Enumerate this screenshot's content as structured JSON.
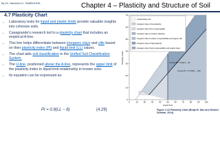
{
  "header": {
    "author": "By Dr. Hamidou H. TAMBOURA",
    "title": "Chapter 4 – Plasticity and Structure of Soil"
  },
  "section": {
    "heading": "4.7 Plasticity Chart",
    "bullets": [
      [
        "Laboratory tests for ",
        {
          "text": "liquid and plastic limits",
          "highlight": true
        },
        " provide valuable insights into cohesive soils."
      ],
      [
        "Casagrande's research led to a ",
        {
          "text": "plasticity chart",
          "highlight": true
        },
        " that includes an empirical A-line."
      ],
      [
        "This line helps differentiate between ",
        {
          "text": "inorganic clays",
          "highlight": true
        },
        " and ",
        {
          "text": "silts",
          "highlight": true
        },
        " based on their ",
        {
          "text": "plasticity index (PI)",
          "highlight": true
        },
        " and ",
        {
          "text": "liquid limit (LL)",
          "highlight": true
        },
        " values."
      ],
      [
        "The chart aids ",
        {
          "text": "soil classification",
          "highlight": true
        },
        " in the ",
        {
          "text": "Unified Soil Classification System.",
          "highlight": true
        }
      ],
      [
        "The ",
        {
          "text": "U-line",
          "highlight": true
        },
        ", positioned ",
        {
          "text": "above the A-line",
          "highlight": true
        },
        ", represents the ",
        {
          "text": "upper limit",
          "highlight": true
        },
        " of the plasticity index to liquid limit relationship in known soils."
      ],
      [
        "Its equation can be expressed as:"
      ]
    ],
    "equation": "PI = 0.9(LL − 8)",
    "equation_number": "(4.29)"
  },
  "figure": {
    "legend": [
      "Cohesionless soil",
      "Inorganic clays of low plasticity",
      "Inorganic silts of low compressibility",
      "Inorganic clays of medium plasticity",
      "Inorganic silts of medium compressibility and organic silts",
      "Inorganic clays of high plasticity",
      "Inorganic silts of high compressibility and organic clays"
    ],
    "u_line": "U-Line PI = 0.9(LL − 8)",
    "a_line": "A-Line PI = 0.73(LL − 20)",
    "x_label": "Liquid limit",
    "y_label": "Plasticity index",
    "x_ticks": [
      0,
      10,
      20,
      30,
      40,
      50,
      60,
      70,
      80,
      90,
      100
    ],
    "y_ticks": [
      0,
      10,
      20,
      30,
      40,
      50,
      60,
      70
    ],
    "caption": "Figure 4.13 Plasticity chart (Braja M. Das and Khaled Sobhan, 2014)"
  }
}
